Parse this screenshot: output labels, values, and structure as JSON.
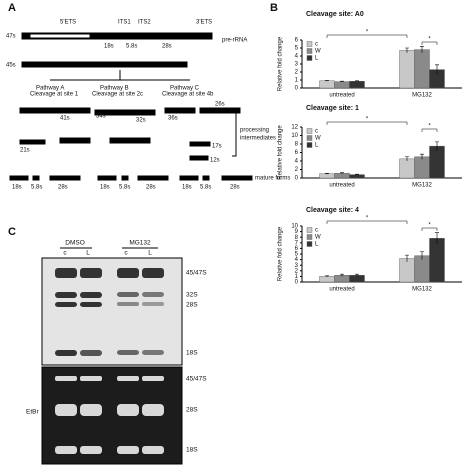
{
  "panels": {
    "a": "A",
    "b": "B",
    "c": "C"
  },
  "diagram": {
    "texts": [
      "47s",
      "5'ETS",
      "ITS1",
      "ITS2",
      "3'ETS",
      "pre-rRNA",
      "18s",
      "5.8s",
      "28s",
      "45s",
      "Pathway A",
      "Cleavage at site 1",
      "Pathway B",
      "Cleavage at site 2c",
      "Pathway C",
      "Cleavage at site 4b",
      "41s",
      "21s",
      "34s",
      "32s",
      "36s",
      "26s",
      "17s",
      "12s",
      "processing",
      "intermediates",
      "mature forms",
      "18s",
      "5.8s",
      "28s",
      "18s",
      "5.8s",
      "28s",
      "18s",
      "5.8s",
      "28s"
    ]
  },
  "gel": {
    "groups": [
      "DMSO",
      "MG132"
    ],
    "lanes": [
      "c",
      "L",
      "c",
      "L"
    ],
    "blot_bands": [
      "45/47S",
      "32S",
      "28S",
      "18S"
    ],
    "stain": "EtBr",
    "stain_bands": [
      "45/47S",
      "28S",
      "18S"
    ]
  },
  "chart_data": [
    {
      "type": "bar",
      "title": "Cleavage site: A0",
      "y_label": "Relative fold change",
      "categories": [
        "untreated",
        "MG132"
      ],
      "ylim": [
        0,
        6
      ],
      "yticks": [
        0,
        1,
        2,
        3,
        4,
        5,
        6
      ],
      "series": [
        {
          "name": "c",
          "color": "#c8c8c8",
          "values": [
            0.9,
            4.7
          ],
          "errors": [
            0.05,
            0.3
          ]
        },
        {
          "name": "W",
          "color": "#8a8a8a",
          "values": [
            0.8,
            4.8
          ],
          "errors": [
            0.05,
            0.4
          ]
        },
        {
          "name": "L",
          "color": "#333333",
          "values": [
            0.85,
            2.3
          ],
          "errors": [
            0.05,
            0.6
          ]
        }
      ],
      "annotations": [
        "*",
        "*"
      ],
      "legend": "upper left"
    },
    {
      "type": "bar",
      "title": "Cleavage site: 1",
      "y_label": "Relative fold change",
      "categories": [
        "untreated",
        "MG132"
      ],
      "ylim": [
        0,
        12
      ],
      "yticks": [
        0,
        2,
        4,
        6,
        8,
        10,
        12
      ],
      "series": [
        {
          "name": "c",
          "color": "#c8c8c8",
          "values": [
            1.0,
            4.5
          ],
          "errors": [
            0.1,
            0.5
          ]
        },
        {
          "name": "W",
          "color": "#8a8a8a",
          "values": [
            1.1,
            5.0
          ],
          "errors": [
            0.15,
            0.6
          ]
        },
        {
          "name": "L",
          "color": "#333333",
          "values": [
            0.8,
            7.5
          ],
          "errors": [
            0.1,
            1.0
          ]
        }
      ],
      "annotations": [
        "*",
        "*"
      ],
      "legend": "upper left"
    },
    {
      "type": "bar",
      "title": "Cleavage site: 4",
      "y_label": "Relative fold change",
      "categories": [
        "untreated",
        "MG132"
      ],
      "ylim": [
        0,
        10
      ],
      "yticks": [
        0,
        1,
        2,
        3,
        4,
        5,
        6,
        7,
        8,
        9,
        10
      ],
      "series": [
        {
          "name": "c",
          "color": "#c8c8c8",
          "values": [
            1.0,
            4.2
          ],
          "errors": [
            0.1,
            0.6
          ]
        },
        {
          "name": "W",
          "color": "#8a8a8a",
          "values": [
            1.2,
            4.7
          ],
          "errors": [
            0.2,
            0.7
          ]
        },
        {
          "name": "L",
          "color": "#333333",
          "values": [
            1.2,
            7.8
          ],
          "errors": [
            0.2,
            1.0
          ]
        }
      ],
      "annotations": [
        "*",
        "*"
      ],
      "legend": "upper left"
    }
  ]
}
